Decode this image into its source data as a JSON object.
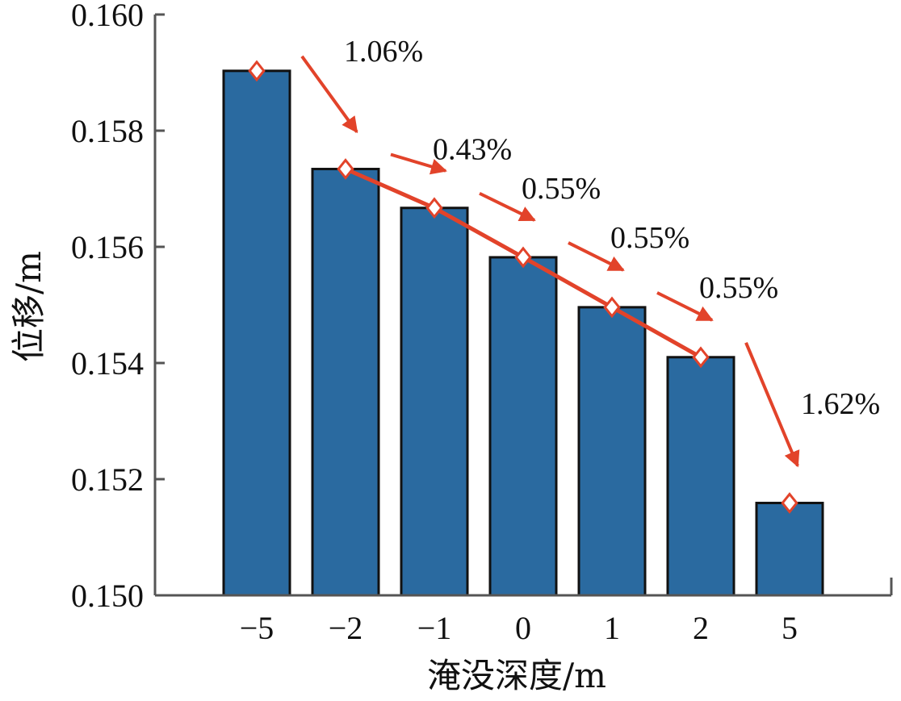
{
  "chart_data": {
    "type": "bar",
    "categories": [
      "−5",
      "−2",
      "−1",
      "0",
      "1",
      "2",
      "5"
    ],
    "values": [
      0.15903,
      0.15734,
      0.15667,
      0.15582,
      0.15496,
      0.1541,
      0.15159
    ],
    "xlabel": "淹没深度/m",
    "ylabel": "位移/m",
    "ylim": [
      0.15,
      0.16
    ],
    "yticks": [
      "0.150",
      "0.152",
      "0.154",
      "0.156",
      "0.158",
      "0.160"
    ],
    "grid": false,
    "trend_line": true,
    "annotations": [
      "1.06%",
      "0.43%",
      "0.55%",
      "0.55%",
      "0.55%",
      "1.62%"
    ]
  },
  "colors": {
    "bar": "#2a6aa0",
    "bar_edge": "#111111",
    "trend": "#e2432a",
    "axis": "#555555"
  }
}
